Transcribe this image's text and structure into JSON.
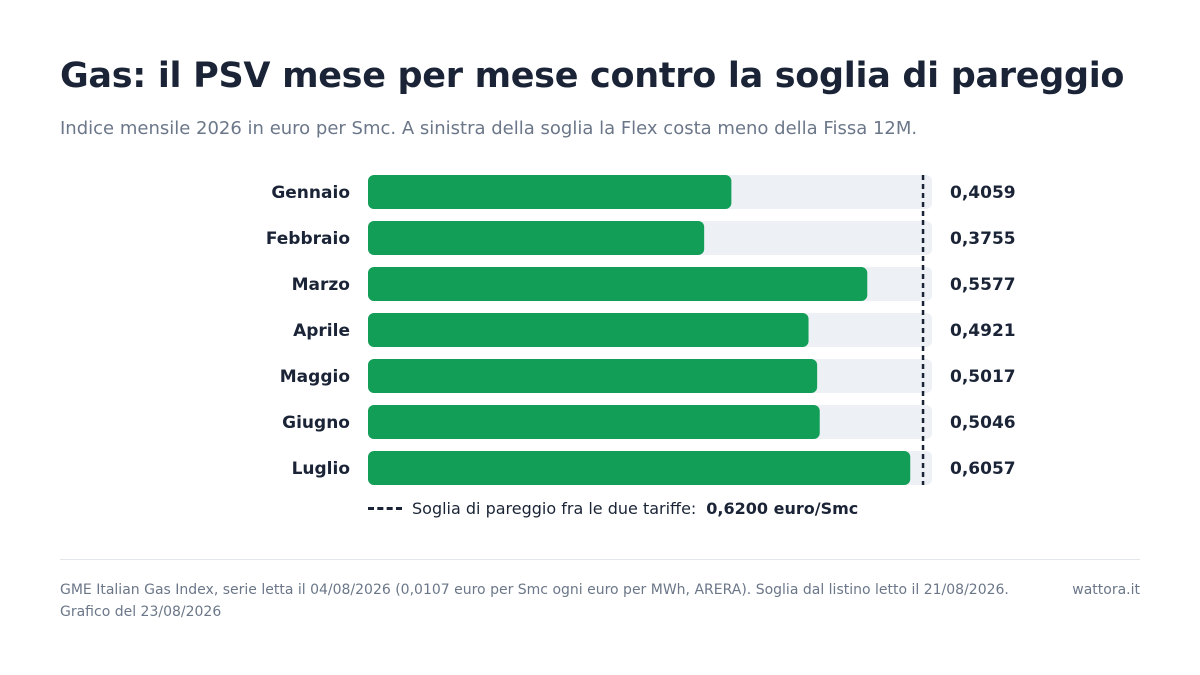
{
  "header": {
    "title": "Gas: il PSV mese per mese contro la soglia di pareggio",
    "subtitle": "Indice mensile 2026 in euro per Smc. A sinistra della soglia la Flex costa meno della Fissa 12M."
  },
  "chart_data": {
    "type": "bar",
    "orientation": "horizontal",
    "categories": [
      "Gennaio",
      "Febbraio",
      "Marzo",
      "Aprile",
      "Maggio",
      "Giugno",
      "Luglio"
    ],
    "values": [
      0.4059,
      0.3755,
      0.5577,
      0.4921,
      0.5017,
      0.5046,
      0.6057
    ],
    "value_labels": [
      "0,4059",
      "0,3755",
      "0,5577",
      "0,4921",
      "0,5017",
      "0,5046",
      "0,6057"
    ],
    "xlim": [
      0,
      0.63
    ],
    "threshold": 0.62,
    "bar_color": "#139e58",
    "track_color": "#edf0f4",
    "threshold_color": "#1a2436"
  },
  "legend": {
    "label": "Soglia di pareggio fra le due tariffe:",
    "value": "0,6200 euro/Smc"
  },
  "footer": {
    "source_line1": "GME Italian Gas Index, serie letta il 04/08/2026 (0,0107 euro per Smc ogni euro per MWh, ARERA). Soglia dal listino letto il 21/08/2026.",
    "source_line2": "Grafico del 23/08/2026",
    "brand": "wattora.it"
  }
}
